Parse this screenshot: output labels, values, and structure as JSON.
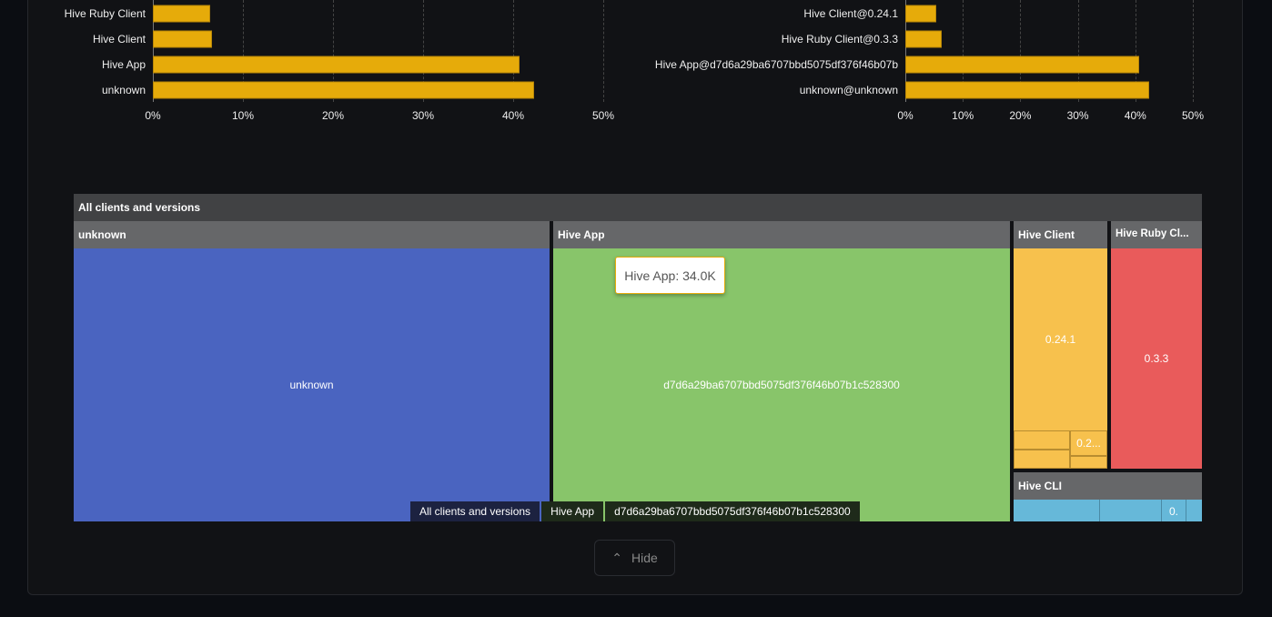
{
  "chart_data": [
    {
      "type": "bar",
      "orientation": "horizontal",
      "categories": [
        "Hive Ruby Client",
        "Hive Client",
        "Hive App",
        "unknown"
      ],
      "values": [
        6.4,
        6.6,
        40.7,
        42.3
      ],
      "xlim": [
        0,
        50
      ],
      "xticks": [
        "0%",
        "10%",
        "20%",
        "30%",
        "40%",
        "50%"
      ],
      "grid": true,
      "color": "#e6ab0a"
    },
    {
      "type": "bar",
      "orientation": "horizontal",
      "categories": [
        "Hive Client@0.24.1",
        "Hive Ruby Client@0.3.3",
        "Hive App@d7d6a29ba6707bbd5075df376f46b07b",
        "unknown@unknown"
      ],
      "values": [
        5.4,
        6.3,
        40.7,
        42.4
      ],
      "xlim": [
        0,
        50
      ],
      "xticks": [
        "0%",
        "10%",
        "20%",
        "30%",
        "40%",
        "50%"
      ],
      "grid": true,
      "color": "#e6ab0a"
    }
  ],
  "treemap": {
    "root": "All clients and versions",
    "groups": [
      {
        "name": "unknown",
        "color": "#4a64c0",
        "children": [
          "unknown"
        ]
      },
      {
        "name": "Hive App",
        "color": "#88c56a",
        "children": [
          "d7d6a29ba6707bbd5075df376f46b07b1c528300"
        ]
      },
      {
        "name": "Hive Client",
        "color": "#f7c14d",
        "children": [
          "0.24.1",
          "0.2..."
        ]
      },
      {
        "name": "Hive Ruby Cl...",
        "color": "#e95b5b",
        "children": [
          "0.3.3"
        ]
      },
      {
        "name": "Hive CLI",
        "color": "#66b8d9",
        "children": [
          "0.",
          "",
          ""
        ]
      }
    ],
    "tooltip": "Hive App: 34.0K",
    "breadcrumb": [
      "All clients and versions",
      "Hive App",
      "d7d6a29ba6707bbd5075df376f46b07b1c528300"
    ]
  },
  "hide_button": {
    "label": "Hide",
    "icon": "chevron-up-icon"
  }
}
